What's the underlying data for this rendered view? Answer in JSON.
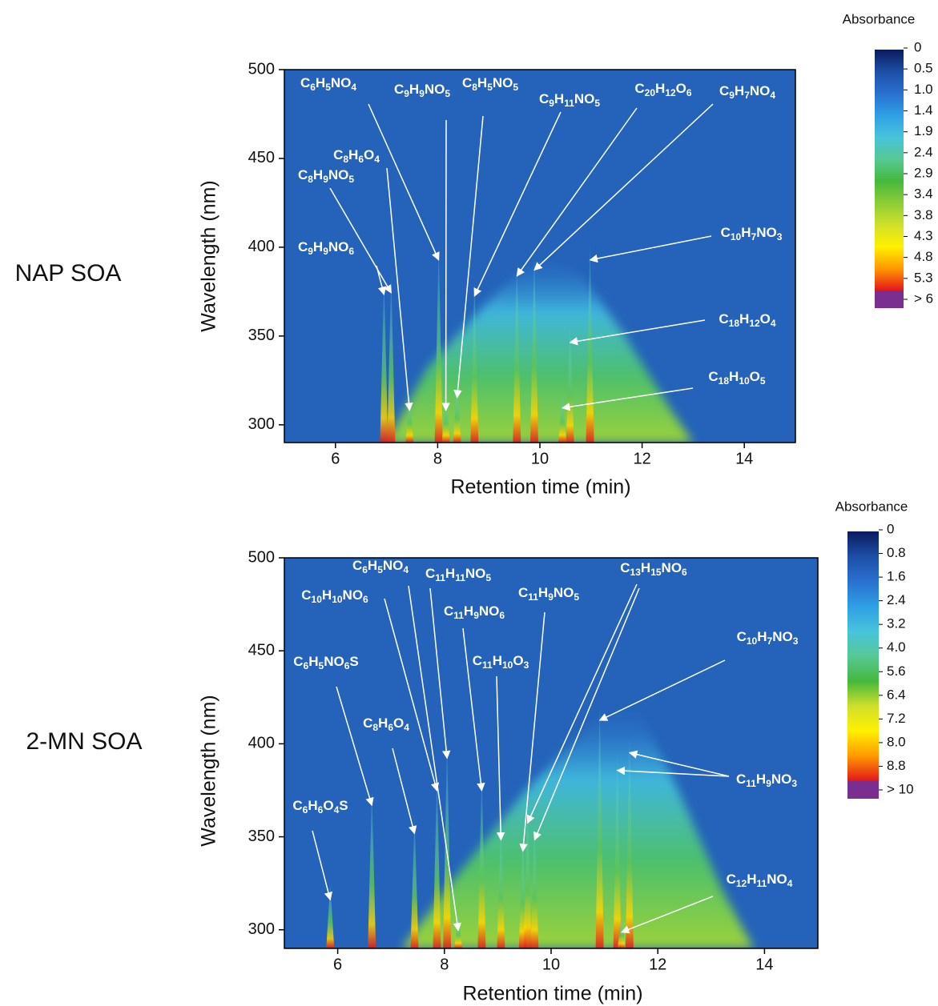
{
  "chart_data": [
    {
      "type": "heatmap",
      "label": "NAP SOA",
      "x_label": "Retention time (min)",
      "y_label": "Wavelength (nm)",
      "xlim": [
        5,
        15
      ],
      "xticks": [
        6,
        8,
        10,
        12,
        14
      ],
      "ylim": [
        290,
        500
      ],
      "yticks": [
        300,
        350,
        400,
        450,
        500
      ],
      "colorbar": {
        "title": "Absorbance",
        "ticks": [
          0,
          0.5,
          {
            "value": 1,
            "label": "1.0"
          },
          1.4,
          1.9,
          2.4,
          2.9,
          3.4,
          3.8,
          4.3,
          4.8,
          5.3,
          {
            "value": 6,
            "label": "> 6"
          }
        ],
        "colors": [
          "#0b1a5e",
          "#1d4fa6",
          "#2a70cf",
          "#2f9fe4",
          "#47c3db",
          "#57c894",
          "#45b83c",
          "#8ccd35",
          "#cfe02a",
          "#fff000",
          "#ff9800",
          "#e3161b",
          "#7a2e8f"
        ]
      },
      "annotations": [
        {
          "text": "C6H5NO4",
          "x": [
            8.02
          ],
          "y": [
            392.8
          ]
        },
        {
          "text": "C9H9NO5",
          "x": [
            8.16
          ],
          "y": [
            308.1
          ]
        },
        {
          "text": "C8H5NO5",
          "x": [
            8.38
          ],
          "y": [
            315.3
          ]
        },
        {
          "text": "C9H11NO5",
          "x": [
            8.72
          ],
          "y": [
            372.5
          ]
        },
        {
          "text": "C20H12O6",
          "x": [
            9.55
          ],
          "y": [
            383.8
          ]
        },
        {
          "text": "C9H7NO4",
          "x": [
            9.89
          ],
          "y": [
            387.1
          ]
        },
        {
          "text": "C8H6O4",
          "x": [
            7.45
          ],
          "y": [
            308.1
          ]
        },
        {
          "text": "C8H9NO5",
          "x": [
            7.09
          ],
          "y": [
            374.3
          ]
        },
        {
          "text": "C9H9NO6",
          "x": [
            6.95
          ],
          "y": [
            373.4
          ]
        },
        {
          "text": "C10H7NO3",
          "x": [
            10.98
          ],
          "y": [
            392.8
          ]
        },
        {
          "text": "C18H12O4",
          "x": [
            10.59
          ],
          "y": [
            346.4
          ]
        },
        {
          "text": "C18H10O5",
          "x": [
            10.44
          ],
          "y": [
            309.5
          ]
        }
      ]
    },
    {
      "type": "heatmap",
      "label": "2-MN SOA",
      "x_label": "Retention time (min)",
      "y_label": "Wavelength (nm)",
      "xlim": [
        5,
        15
      ],
      "xticks": [
        6,
        8,
        10,
        12,
        14
      ],
      "ylim": [
        290,
        500
      ],
      "yticks": [
        300,
        350,
        400,
        450,
        500
      ],
      "colorbar": {
        "title": "Absorbance",
        "ticks": [
          0,
          0.8,
          1.6,
          2.4,
          3.2,
          {
            "value": 4,
            "label": "4.0"
          },
          5.6,
          6.4,
          7.2,
          {
            "value": 8,
            "label": "8.0"
          },
          8.8,
          {
            "value": 10,
            "label": "> 10"
          }
        ],
        "colors": [
          "#0b1a5e",
          "#1d4fa6",
          "#2a70cf",
          "#2f9fe4",
          "#47c3db",
          "#57c894",
          "#45b83c",
          "#cfe02a",
          "#fff000",
          "#ff9800",
          "#e3161b",
          "#7a2e8f"
        ]
      },
      "annotations": [
        {
          "text": "C6H5NO4",
          "x": [
            8.26
          ],
          "y": [
            299.6
          ]
        },
        {
          "text": "C11H11NO5",
          "x": [
            8.05
          ],
          "y": [
            392.2
          ]
        },
        {
          "text": "C10H10NO6",
          "x": [
            7.86
          ],
          "y": [
            374.8
          ]
        },
        {
          "text": "C11H9NO6",
          "x": [
            8.7
          ],
          "y": [
            374.8
          ]
        },
        {
          "text": "C11H9NO5",
          "x": [
            9.47
          ],
          "y": [
            342.2
          ]
        },
        {
          "text": "C11H10O3",
          "x": [
            9.06
          ],
          "y": [
            348.3
          ]
        },
        {
          "text": "C13H15NO6",
          "x": [
            9.56,
            9.69
          ],
          "y": [
            357.4,
            348.3
          ]
        },
        {
          "text": "C10H7NO3",
          "x": [
            10.91
          ],
          "y": [
            412.6
          ]
        },
        {
          "text": "C6H5NO6S",
          "x": [
            6.64
          ],
          "y": [
            366.9
          ]
        },
        {
          "text": "C8H6O4",
          "x": [
            7.44
          ],
          "y": [
            351.7
          ]
        },
        {
          "text": "C6H6O4S",
          "x": [
            5.86
          ],
          "y": [
            316.1
          ]
        },
        {
          "text": "C11H9NO3",
          "x": [
            11.47,
            11.24
          ],
          "y": [
            395.2,
            385.7
          ]
        },
        {
          "text": "C12H11NO4",
          "x": [
            11.32
          ],
          "y": [
            298.7
          ]
        }
      ]
    }
  ]
}
